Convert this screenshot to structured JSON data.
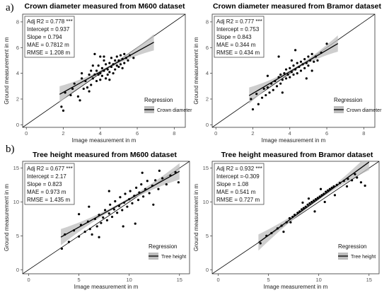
{
  "figure": {
    "label_a": "a)",
    "label_b": "b)"
  },
  "chart_data": [
    {
      "type": "scatter",
      "title": "Crown diameter measured from M600 dataset",
      "xlabel": "Image measurement in m",
      "ylabel": "Ground measurement in m",
      "xlim": [
        -0.2,
        8.6
      ],
      "ylim": [
        -0.2,
        8.6
      ],
      "xticks": [
        0,
        2,
        4,
        6,
        8
      ],
      "yticks": [
        0,
        2,
        4,
        6,
        8
      ],
      "grid": false,
      "legend_position": "bottom-right",
      "legend_title": "Regression",
      "series_name": "Crown diameter",
      "stats": [
        "Adj R2 =  0.778 ***",
        "Intercept = 0.937",
        "Slope = 0.794",
        "MAE = 0.7812 m",
        "RMSE = 1.208 m"
      ],
      "identity_line": true,
      "fit": {
        "x0": 1.8,
        "x1": 6.9,
        "intercept": 0.937,
        "slope": 0.794
      },
      "points": [
        [
          1.9,
          1.4
        ],
        [
          2.1,
          2.5
        ],
        [
          2.0,
          1.1
        ],
        [
          2.4,
          2.3
        ],
        [
          2.6,
          3.2
        ],
        [
          2.8,
          2.2
        ],
        [
          2.5,
          2.8
        ],
        [
          3.0,
          3.6
        ],
        [
          2.9,
          1.9
        ],
        [
          3.1,
          2.8
        ],
        [
          3.2,
          3.4
        ],
        [
          3.3,
          2.9
        ],
        [
          3.4,
          3.9
        ],
        [
          3.5,
          3.1
        ],
        [
          3.5,
          4.2
        ],
        [
          3.6,
          3.6
        ],
        [
          3.7,
          3.9
        ],
        [
          3.8,
          4.2
        ],
        [
          3.8,
          3.4
        ],
        [
          3.9,
          3.9
        ],
        [
          3.9,
          4.6
        ],
        [
          4.0,
          4.0
        ],
        [
          4.0,
          3.5
        ],
        [
          4.1,
          4.4
        ],
        [
          4.1,
          3.8
        ],
        [
          4.2,
          4.2
        ],
        [
          4.2,
          5.0
        ],
        [
          4.3,
          3.6
        ],
        [
          4.3,
          4.7
        ],
        [
          4.4,
          4.3
        ],
        [
          4.4,
          3.9
        ],
        [
          4.5,
          4.8
        ],
        [
          4.5,
          4.1
        ],
        [
          4.6,
          4.5
        ],
        [
          4.6,
          5.2
        ],
        [
          4.7,
          4.0
        ],
        [
          4.7,
          4.7
        ],
        [
          4.8,
          5.0
        ],
        [
          4.8,
          4.3
        ],
        [
          4.9,
          4.6
        ],
        [
          4.9,
          5.3
        ],
        [
          5.0,
          4.5
        ],
        [
          5.0,
          5.0
        ],
        [
          5.1,
          5.4
        ],
        [
          5.1,
          4.7
        ],
        [
          5.2,
          5.1
        ],
        [
          5.3,
          4.8
        ],
        [
          5.3,
          5.5
        ],
        [
          5.4,
          5.2
        ],
        [
          5.5,
          5.0
        ],
        [
          5.6,
          5.4
        ],
        [
          5.8,
          5.2
        ],
        [
          3.7,
          5.5
        ],
        [
          4.2,
          5.3
        ],
        [
          3.4,
          2.6
        ],
        [
          3.0,
          4.0
        ],
        [
          4.5,
          3.5
        ],
        [
          5.2,
          4.4
        ],
        [
          4.0,
          5.3
        ],
        [
          3.6,
          4.6
        ]
      ]
    },
    {
      "type": "scatter",
      "title": "Crown diameter measured from Bramor dataset",
      "xlabel": "Image measurement in m",
      "ylabel": "Ground measurement in m",
      "xlim": [
        -0.2,
        8.6
      ],
      "ylim": [
        -0.2,
        8.6
      ],
      "xticks": [
        0,
        2,
        4,
        6,
        8
      ],
      "yticks": [
        0,
        2,
        4,
        6,
        8
      ],
      "grid": false,
      "legend_position": "bottom-right",
      "legend_title": "Regression",
      "series_name": "Crown diameter",
      "stats": [
        "Adj R2 =  0.777 ***",
        "Intercept = 0.753",
        "Slope = 0.843",
        "MAE = 0.344 m",
        "RMSE = 0.434 m"
      ],
      "identity_line": true,
      "fit": {
        "x0": 1.8,
        "x1": 6.6,
        "intercept": 0.753,
        "slope": 0.843
      },
      "points": [
        [
          1.9,
          2.0
        ],
        [
          2.0,
          1.2
        ],
        [
          2.2,
          2.4
        ],
        [
          2.3,
          1.6
        ],
        [
          2.5,
          2.1
        ],
        [
          2.6,
          2.8
        ],
        [
          2.7,
          2.3
        ],
        [
          2.8,
          2.9
        ],
        [
          2.9,
          2.5
        ],
        [
          3.0,
          3.2
        ],
        [
          3.1,
          2.7
        ],
        [
          3.2,
          3.4
        ],
        [
          3.3,
          3.0
        ],
        [
          3.4,
          3.7
        ],
        [
          3.5,
          3.2
        ],
        [
          3.5,
          3.9
        ],
        [
          3.6,
          3.5
        ],
        [
          3.7,
          4.0
        ],
        [
          3.8,
          3.6
        ],
        [
          3.8,
          4.3
        ],
        [
          3.9,
          3.9
        ],
        [
          4.0,
          4.4
        ],
        [
          4.0,
          3.7
        ],
        [
          4.1,
          4.1
        ],
        [
          4.2,
          4.6
        ],
        [
          4.2,
          3.9
        ],
        [
          4.3,
          4.3
        ],
        [
          4.4,
          4.8
        ],
        [
          4.4,
          4.0
        ],
        [
          4.5,
          4.5
        ],
        [
          4.6,
          4.9
        ],
        [
          4.6,
          4.2
        ],
        [
          4.7,
          4.7
        ],
        [
          4.8,
          5.1
        ],
        [
          4.8,
          4.4
        ],
        [
          4.9,
          4.8
        ],
        [
          5.0,
          5.3
        ],
        [
          5.0,
          4.6
        ],
        [
          5.1,
          5.0
        ],
        [
          5.2,
          5.5
        ],
        [
          5.3,
          4.9
        ],
        [
          5.4,
          5.3
        ],
        [
          5.5,
          5.0
        ],
        [
          5.7,
          5.6
        ],
        [
          6.0,
          6.3
        ],
        [
          4.3,
          5.8
        ],
        [
          3.4,
          5.3
        ],
        [
          2.8,
          3.8
        ],
        [
          4.9,
          3.6
        ],
        [
          3.6,
          2.5
        ],
        [
          5.2,
          4.2
        ],
        [
          4.1,
          5.0
        ]
      ]
    },
    {
      "type": "scatter",
      "title": "Tree height measured from M600 dataset",
      "xlabel": "Image measurement in m",
      "ylabel": "Ground measurement in m",
      "xlim": [
        -0.6,
        16
      ],
      "ylim": [
        -0.6,
        16
      ],
      "xticks": [
        0,
        5,
        10,
        15
      ],
      "yticks": [
        0,
        5,
        10,
        15
      ],
      "grid": false,
      "legend_position": "bottom-right",
      "legend_title": "Regression",
      "series_name": "Tree height",
      "stats": [
        "Adj R2 =  0.677 ***",
        "Intercept = 2.17",
        "Slope = 0.823",
        "MAE = 0.973 m",
        "RMSE = 1.435 m"
      ],
      "identity_line": true,
      "fit": {
        "x0": 3.2,
        "x1": 15.0,
        "intercept": 2.17,
        "slope": 0.823
      },
      "points": [
        [
          3.3,
          3.1
        ],
        [
          3.6,
          5.2
        ],
        [
          4.0,
          4.1
        ],
        [
          4.5,
          5.8
        ],
        [
          5.0,
          4.9
        ],
        [
          5.2,
          6.6
        ],
        [
          5.6,
          5.6
        ],
        [
          5.9,
          7.1
        ],
        [
          6.1,
          6.0
        ],
        [
          6.3,
          5.2
        ],
        [
          6.6,
          7.5
        ],
        [
          6.8,
          6.4
        ],
        [
          7.0,
          8.1
        ],
        [
          7.2,
          6.9
        ],
        [
          7.4,
          7.7
        ],
        [
          7.6,
          8.8
        ],
        [
          7.8,
          7.3
        ],
        [
          8.0,
          8.3
        ],
        [
          8.1,
          9.6
        ],
        [
          8.3,
          7.8
        ],
        [
          8.5,
          8.9
        ],
        [
          8.6,
          10.1
        ],
        [
          8.8,
          8.4
        ],
        [
          9.0,
          9.4
        ],
        [
          9.1,
          10.7
        ],
        [
          9.3,
          8.8
        ],
        [
          9.5,
          9.9
        ],
        [
          9.6,
          11.2
        ],
        [
          9.8,
          9.3
        ],
        [
          10.0,
          10.4
        ],
        [
          10.1,
          11.6
        ],
        [
          10.3,
          9.8
        ],
        [
          10.5,
          10.9
        ],
        [
          10.7,
          12.1
        ],
        [
          10.9,
          10.3
        ],
        [
          11.0,
          11.4
        ],
        [
          11.2,
          12.6
        ],
        [
          11.4,
          10.8
        ],
        [
          11.6,
          11.9
        ],
        [
          11.8,
          13.1
        ],
        [
          12.0,
          11.3
        ],
        [
          12.3,
          12.4
        ],
        [
          12.6,
          13.2
        ],
        [
          12.9,
          11.9
        ],
        [
          13.3,
          13.5
        ],
        [
          13.7,
          12.6
        ],
        [
          14.1,
          13.9
        ],
        [
          14.6,
          14.4
        ],
        [
          10.6,
          6.8
        ],
        [
          8.0,
          11.6
        ],
        [
          12.4,
          9.6
        ],
        [
          6.0,
          9.3
        ],
        [
          9.4,
          6.4
        ],
        [
          13.0,
          14.6
        ],
        [
          7.0,
          4.8
        ],
        [
          11.3,
          14.3
        ],
        [
          14.9,
          12.9
        ],
        [
          5.0,
          8.2
        ]
      ]
    },
    {
      "type": "scatter",
      "title": "Tree height measured from Bramor dataset",
      "xlabel": "Image measurement in m",
      "ylabel": "Ground measurement in m",
      "xlim": [
        -0.6,
        16
      ],
      "ylim": [
        -0.6,
        16
      ],
      "xticks": [
        0,
        5,
        10,
        15
      ],
      "yticks": [
        0,
        5,
        10,
        15
      ],
      "grid": false,
      "legend_position": "bottom-right",
      "legend_title": "Regression",
      "series_name": "Tree height",
      "stats": [
        "Adj R2 =  0.932 ***",
        "Intercept =-0.309",
        "Slope = 1.08",
        "MAE = 0.541 m",
        "RMSE = 0.727 m"
      ],
      "identity_line": true,
      "fit": {
        "x0": 4.0,
        "x1": 15.0,
        "intercept": -0.309,
        "slope": 1.08
      },
      "points": [
        [
          4.2,
          3.9
        ],
        [
          4.8,
          5.0
        ],
        [
          5.3,
          5.4
        ],
        [
          5.9,
          6.1
        ],
        [
          6.3,
          6.5
        ],
        [
          6.8,
          7.0
        ],
        [
          7.1,
          7.6
        ],
        [
          7.4,
          7.8
        ],
        [
          7.6,
          8.1
        ],
        [
          7.9,
          8.4
        ],
        [
          8.1,
          8.6
        ],
        [
          8.3,
          8.9
        ],
        [
          8.5,
          9.1
        ],
        [
          8.7,
          9.3
        ],
        [
          8.9,
          9.6
        ],
        [
          9.1,
          9.8
        ],
        [
          9.3,
          10.0
        ],
        [
          9.5,
          10.2
        ],
        [
          9.7,
          10.4
        ],
        [
          9.9,
          10.6
        ],
        [
          10.1,
          10.8
        ],
        [
          10.3,
          11.0
        ],
        [
          10.5,
          11.2
        ],
        [
          10.7,
          11.5
        ],
        [
          10.9,
          11.7
        ],
        [
          11.1,
          11.9
        ],
        [
          11.3,
          12.1
        ],
        [
          11.5,
          12.3
        ],
        [
          11.8,
          12.5
        ],
        [
          12.1,
          12.8
        ],
        [
          12.5,
          13.1
        ],
        [
          12.9,
          13.4
        ],
        [
          13.3,
          13.2
        ],
        [
          13.8,
          13.6
        ],
        [
          14.2,
          12.9
        ],
        [
          14.6,
          12.4
        ],
        [
          9.6,
          8.6
        ],
        [
          8.4,
          9.9
        ],
        [
          10.6,
          10.0
        ],
        [
          7.2,
          7.0
        ],
        [
          11.6,
          11.0
        ],
        [
          6.5,
          5.6
        ],
        [
          12.8,
          12.3
        ],
        [
          9.0,
          10.5
        ],
        [
          10.2,
          11.9
        ],
        [
          13.6,
          14.1
        ]
      ]
    }
  ]
}
